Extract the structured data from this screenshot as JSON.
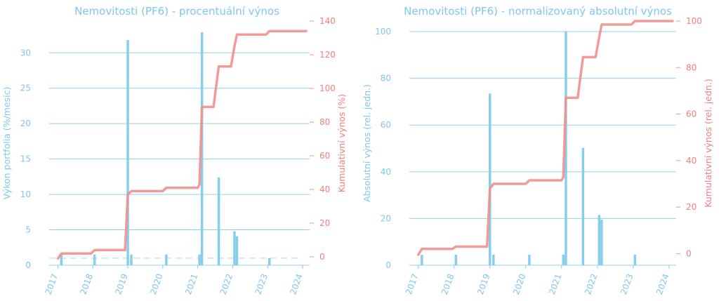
{
  "colors": {
    "blue": "#87ceeb",
    "blue_text": "#7ec8ea",
    "red": "#f0908e",
    "red_text": "#f07f7c",
    "grid": "#8fd0ef",
    "zero_line": "#d6e8f4"
  },
  "chart_data": [
    {
      "type": "bar",
      "title": "Nemovitosti (PF6) - procentuální výnos",
      "ylabel": "Výkon portfolia (%/mesic)",
      "y2label": "Kumulativní výnos (%)",
      "ylim": [
        0,
        33
      ],
      "y2lim": [
        -5,
        140
      ],
      "yticks": [
        0,
        5,
        10,
        15,
        20,
        25,
        30
      ],
      "y2ticks": [
        0,
        20,
        40,
        60,
        80,
        100,
        120,
        140
      ],
      "xlim": [
        2016.75,
        2024.2
      ],
      "xticks": [
        2017,
        2018,
        2019,
        2020,
        2021,
        2022,
        2023,
        2024
      ],
      "xtick_labels": [
        "2017",
        "2018",
        "2019",
        "2020",
        "2021",
        "2022",
        "2023",
        "2024"
      ],
      "grid": true,
      "bars": {
        "x": [
          2017.1,
          2018.05,
          2019.0,
          2019.1,
          2020.1,
          2021.05,
          2021.12,
          2021.6,
          2022.05,
          2022.12,
          2023.05
        ],
        "values": [
          1.5,
          1.5,
          31.8,
          1.5,
          1.5,
          1.5,
          32.9,
          12.4,
          4.8,
          4.1,
          1.0
        ]
      },
      "reference_line": {
        "y": 1.0,
        "style": "dashed"
      },
      "cumulative_line": {
        "x": [
          2017.0,
          2017.1,
          2017.95,
          2018.05,
          2018.92,
          2019.0,
          2019.1,
          2020.0,
          2020.1,
          2021.0,
          2021.05,
          2021.12,
          2021.45,
          2021.6,
          2021.95,
          2022.05,
          2022.12,
          2022.95,
          2023.05,
          2024.1
        ],
        "values": [
          -1,
          2,
          2,
          4,
          4,
          37,
          39,
          39,
          41,
          41,
          43,
          89,
          89,
          113,
          113,
          125,
          132,
          132,
          134,
          134
        ]
      }
    },
    {
      "type": "bar",
      "title": "Nemovitosti (PF6) - normalizovaný absolutní výnos",
      "ylabel": "Absolutní výnos (rel. jedn.)",
      "y2label": "Kumulativní výnos (rel. jedn.)",
      "ylim": [
        0,
        100
      ],
      "y2lim": [
        -5,
        100
      ],
      "yticks": [
        0,
        20,
        40,
        60,
        80,
        100
      ],
      "y2ticks": [
        0,
        20,
        40,
        60,
        80,
        100
      ],
      "xlim": [
        2016.75,
        2024.2
      ],
      "xticks": [
        2017,
        2018,
        2019,
        2020,
        2021,
        2022,
        2023,
        2024
      ],
      "xtick_labels": [
        "2017",
        "2018",
        "2019",
        "2020",
        "2021",
        "2022",
        "2023",
        "2024"
      ],
      "grid": true,
      "bars": {
        "x": [
          2017.1,
          2018.05,
          2019.0,
          2019.1,
          2020.1,
          2021.05,
          2021.12,
          2021.6,
          2022.05,
          2022.12,
          2023.05
        ],
        "values": [
          4.5,
          4.5,
          73.5,
          4.5,
          4.5,
          4.5,
          100,
          50.2,
          21.5,
          19.5,
          4.5
        ]
      },
      "cumulative_line": {
        "x": [
          2017.0,
          2017.1,
          2017.95,
          2018.05,
          2018.92,
          2019.0,
          2019.1,
          2020.0,
          2020.1,
          2021.0,
          2021.05,
          2021.12,
          2021.45,
          2021.6,
          2021.95,
          2022.05,
          2022.12,
          2022.95,
          2023.05,
          2024.1
        ],
        "values": [
          -0.5,
          2,
          2,
          3,
          3,
          28,
          30,
          30,
          31.5,
          31.5,
          33,
          67,
          67,
          84.5,
          84.5,
          93,
          98.5,
          98.5,
          100,
          100
        ]
      }
    }
  ]
}
